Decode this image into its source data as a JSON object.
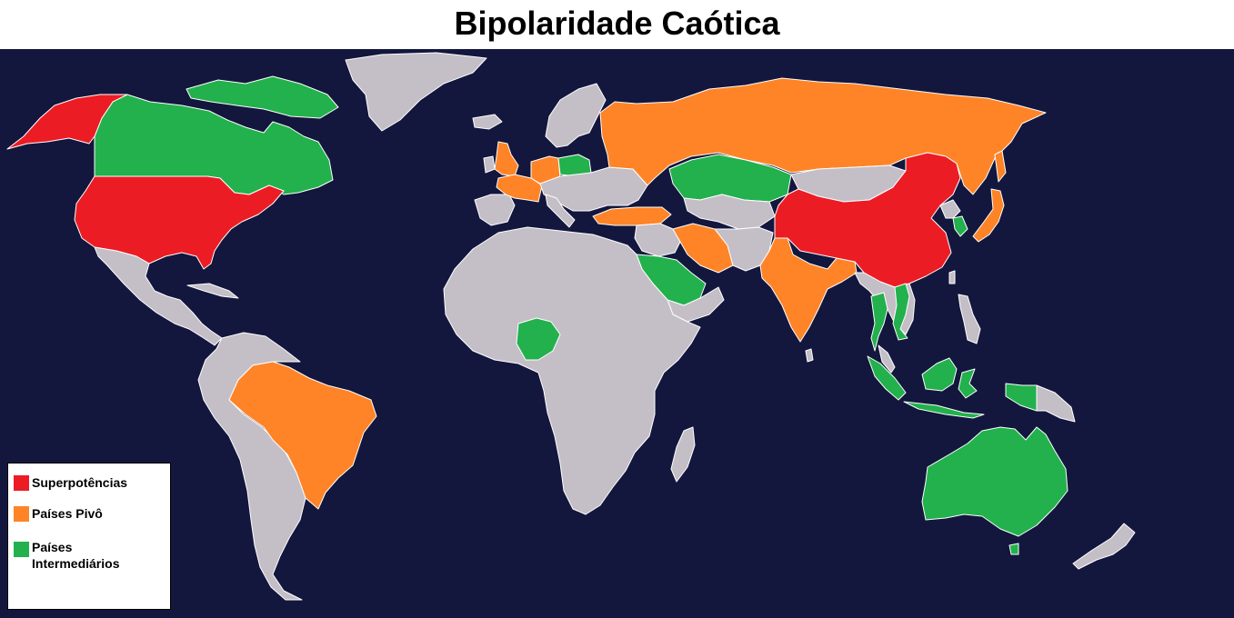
{
  "title": "Bipolaridade Caótica",
  "colors": {
    "ocean": "#13173e",
    "land_default": "#c4bec7",
    "border": "#ffffff"
  },
  "legend": [
    {
      "label": "Superpotências",
      "color": "#ec1c24"
    },
    {
      "label": "Países Pivô",
      "color": "#ff8427"
    },
    {
      "label": "Países Intermediários",
      "color": "#22b14c"
    }
  ],
  "groups": {
    "superpotencias": [
      "Estados Unidos",
      "Alasca",
      "China"
    ],
    "paises_pivo": [
      "Brasil",
      "Rússia",
      "Índia",
      "Irã",
      "Turquia",
      "Japão",
      "Reino Unido",
      "França",
      "Alemanha"
    ],
    "paises_intermediarios": [
      "Canadá",
      "Austrália",
      "Cazaquistão",
      "Arábia Saudita",
      "Nigéria",
      "Polônia",
      "Indonésia",
      "Tailândia",
      "Vietnã",
      "Coreia do Sul"
    ]
  }
}
